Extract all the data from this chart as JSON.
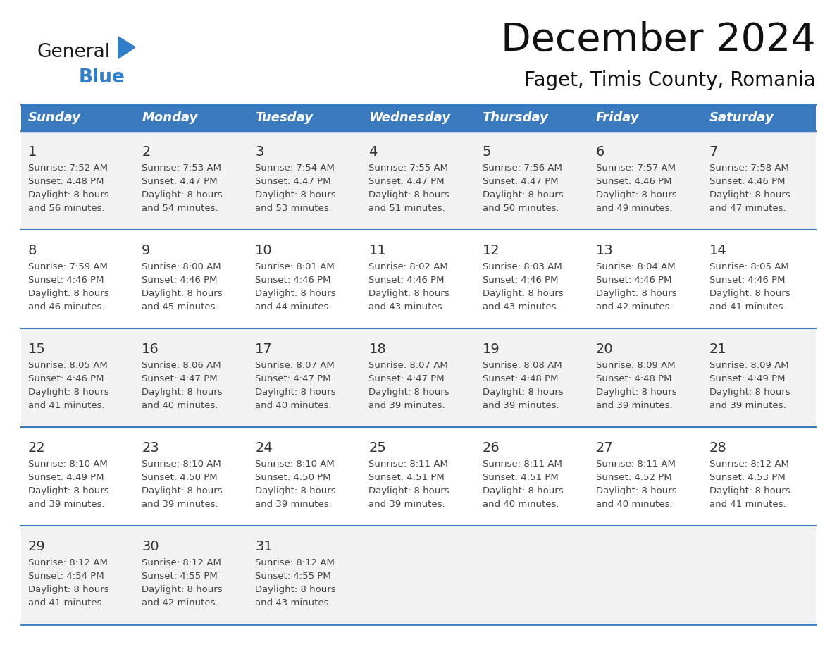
{
  "title": "December 2024",
  "subtitle": "Faget, Timis County, Romania",
  "days_of_week": [
    "Sunday",
    "Monday",
    "Tuesday",
    "Wednesday",
    "Thursday",
    "Friday",
    "Saturday"
  ],
  "header_bg": "#3A7BBF",
  "header_text": "#FFFFFF",
  "cell_bg_odd": "#F2F2F2",
  "cell_bg_even": "#FFFFFF",
  "border_color": "#3A7BBF",
  "day_num_color": "#333333",
  "info_color": "#444444",
  "calendar_data": [
    [
      {
        "day": 1,
        "sunrise": "7:52 AM",
        "sunset": "4:48 PM",
        "daylight": "8 hours",
        "daylight2": "and 56 minutes."
      },
      {
        "day": 2,
        "sunrise": "7:53 AM",
        "sunset": "4:47 PM",
        "daylight": "8 hours",
        "daylight2": "and 54 minutes."
      },
      {
        "day": 3,
        "sunrise": "7:54 AM",
        "sunset": "4:47 PM",
        "daylight": "8 hours",
        "daylight2": "and 53 minutes."
      },
      {
        "day": 4,
        "sunrise": "7:55 AM",
        "sunset": "4:47 PM",
        "daylight": "8 hours",
        "daylight2": "and 51 minutes."
      },
      {
        "day": 5,
        "sunrise": "7:56 AM",
        "sunset": "4:47 PM",
        "daylight": "8 hours",
        "daylight2": "and 50 minutes."
      },
      {
        "day": 6,
        "sunrise": "7:57 AM",
        "sunset": "4:46 PM",
        "daylight": "8 hours",
        "daylight2": "and 49 minutes."
      },
      {
        "day": 7,
        "sunrise": "7:58 AM",
        "sunset": "4:46 PM",
        "daylight": "8 hours",
        "daylight2": "and 47 minutes."
      }
    ],
    [
      {
        "day": 8,
        "sunrise": "7:59 AM",
        "sunset": "4:46 PM",
        "daylight": "8 hours",
        "daylight2": "and 46 minutes."
      },
      {
        "day": 9,
        "sunrise": "8:00 AM",
        "sunset": "4:46 PM",
        "daylight": "8 hours",
        "daylight2": "and 45 minutes."
      },
      {
        "day": 10,
        "sunrise": "8:01 AM",
        "sunset": "4:46 PM",
        "daylight": "8 hours",
        "daylight2": "and 44 minutes."
      },
      {
        "day": 11,
        "sunrise": "8:02 AM",
        "sunset": "4:46 PM",
        "daylight": "8 hours",
        "daylight2": "and 43 minutes."
      },
      {
        "day": 12,
        "sunrise": "8:03 AM",
        "sunset": "4:46 PM",
        "daylight": "8 hours",
        "daylight2": "and 43 minutes."
      },
      {
        "day": 13,
        "sunrise": "8:04 AM",
        "sunset": "4:46 PM",
        "daylight": "8 hours",
        "daylight2": "and 42 minutes."
      },
      {
        "day": 14,
        "sunrise": "8:05 AM",
        "sunset": "4:46 PM",
        "daylight": "8 hours",
        "daylight2": "and 41 minutes."
      }
    ],
    [
      {
        "day": 15,
        "sunrise": "8:05 AM",
        "sunset": "4:46 PM",
        "daylight": "8 hours",
        "daylight2": "and 41 minutes."
      },
      {
        "day": 16,
        "sunrise": "8:06 AM",
        "sunset": "4:47 PM",
        "daylight": "8 hours",
        "daylight2": "and 40 minutes."
      },
      {
        "day": 17,
        "sunrise": "8:07 AM",
        "sunset": "4:47 PM",
        "daylight": "8 hours",
        "daylight2": "and 40 minutes."
      },
      {
        "day": 18,
        "sunrise": "8:07 AM",
        "sunset": "4:47 PM",
        "daylight": "8 hours",
        "daylight2": "and 39 minutes."
      },
      {
        "day": 19,
        "sunrise": "8:08 AM",
        "sunset": "4:48 PM",
        "daylight": "8 hours",
        "daylight2": "and 39 minutes."
      },
      {
        "day": 20,
        "sunrise": "8:09 AM",
        "sunset": "4:48 PM",
        "daylight": "8 hours",
        "daylight2": "and 39 minutes."
      },
      {
        "day": 21,
        "sunrise": "8:09 AM",
        "sunset": "4:49 PM",
        "daylight": "8 hours",
        "daylight2": "and 39 minutes."
      }
    ],
    [
      {
        "day": 22,
        "sunrise": "8:10 AM",
        "sunset": "4:49 PM",
        "daylight": "8 hours",
        "daylight2": "and 39 minutes."
      },
      {
        "day": 23,
        "sunrise": "8:10 AM",
        "sunset": "4:50 PM",
        "daylight": "8 hours",
        "daylight2": "and 39 minutes."
      },
      {
        "day": 24,
        "sunrise": "8:10 AM",
        "sunset": "4:50 PM",
        "daylight": "8 hours",
        "daylight2": "and 39 minutes."
      },
      {
        "day": 25,
        "sunrise": "8:11 AM",
        "sunset": "4:51 PM",
        "daylight": "8 hours",
        "daylight2": "and 39 minutes."
      },
      {
        "day": 26,
        "sunrise": "8:11 AM",
        "sunset": "4:51 PM",
        "daylight": "8 hours",
        "daylight2": "and 40 minutes."
      },
      {
        "day": 27,
        "sunrise": "8:11 AM",
        "sunset": "4:52 PM",
        "daylight": "8 hours",
        "daylight2": "and 40 minutes."
      },
      {
        "day": 28,
        "sunrise": "8:12 AM",
        "sunset": "4:53 PM",
        "daylight": "8 hours",
        "daylight2": "and 41 minutes."
      }
    ],
    [
      {
        "day": 29,
        "sunrise": "8:12 AM",
        "sunset": "4:54 PM",
        "daylight": "8 hours",
        "daylight2": "and 41 minutes."
      },
      {
        "day": 30,
        "sunrise": "8:12 AM",
        "sunset": "4:55 PM",
        "daylight": "8 hours",
        "daylight2": "and 42 minutes."
      },
      {
        "day": 31,
        "sunrise": "8:12 AM",
        "sunset": "4:55 PM",
        "daylight": "8 hours",
        "daylight2": "and 43 minutes."
      },
      null,
      null,
      null,
      null
    ]
  ],
  "logo_color_general": "#1a1a1a",
  "logo_color_blue": "#2F7EC7",
  "logo_triangle_color": "#2F7EC7",
  "fig_width": 11.88,
  "fig_height": 9.18,
  "dpi": 100
}
